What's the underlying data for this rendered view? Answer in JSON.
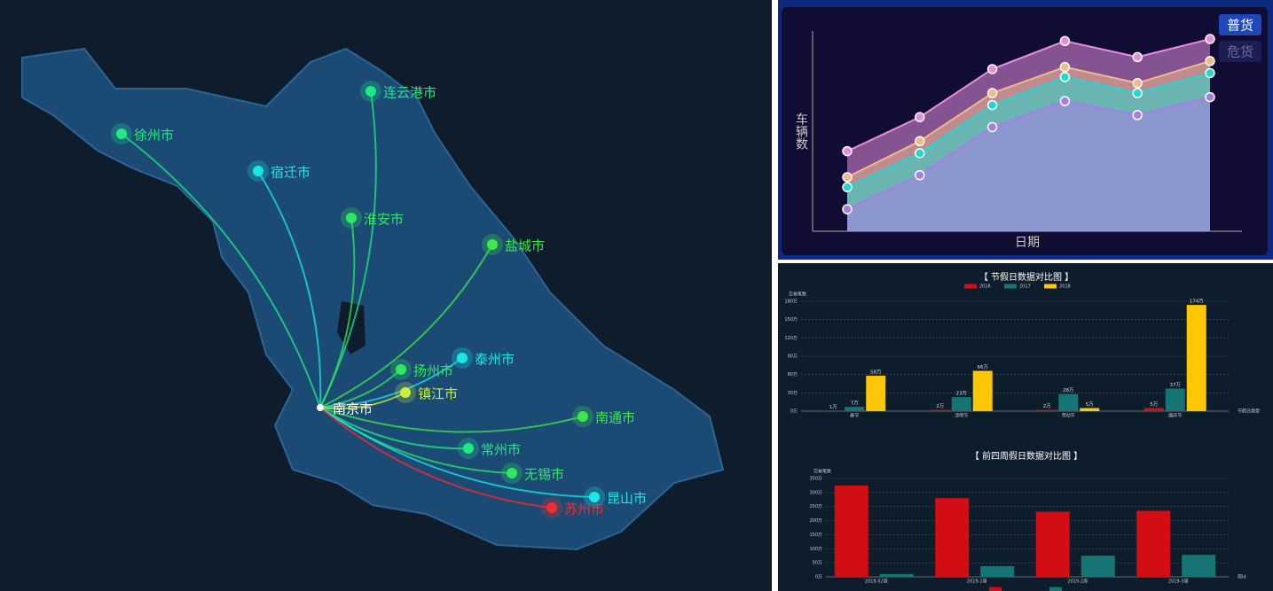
{
  "map": {
    "cities": [
      {
        "name": "徐州市",
        "color": "#1de986"
      },
      {
        "name": "宿迁市",
        "color": "#19e8e8"
      },
      {
        "name": "连云港市",
        "color": "#1de986"
      },
      {
        "name": "淮安市",
        "color": "#2ee860"
      },
      {
        "name": "盐城市",
        "color": "#3ee84a"
      },
      {
        "name": "扬州市",
        "color": "#2ee860"
      },
      {
        "name": "泰州市",
        "color": "#19e8e8"
      },
      {
        "name": "镇江市",
        "color": "#c8f03a"
      },
      {
        "name": "南京市",
        "color": "#ffffff"
      },
      {
        "name": "南通市",
        "color": "#3ee84a"
      },
      {
        "name": "常州市",
        "color": "#1de986"
      },
      {
        "name": "无锡市",
        "color": "#2ee860"
      },
      {
        "name": "昆山市",
        "color": "#19e8e8"
      },
      {
        "name": "苏州市",
        "color": "#ff2a2a"
      }
    ]
  },
  "chart_data": [
    {
      "type": "area",
      "xlabel": "日期",
      "ylabel": "车辆数",
      "legend": [
        "普货",
        "危货"
      ],
      "ylim": [
        0,
        100
      ],
      "series": [
        {
          "color": "#e58ee0",
          "values": [
            40,
            57,
            81,
            95,
            87,
            96
          ]
        },
        {
          "color": "#f0b98a",
          "values": [
            27,
            45,
            69,
            82,
            74,
            85
          ]
        },
        {
          "color": "#22d8d0",
          "values": [
            22,
            39,
            63,
            77,
            69,
            79
          ]
        },
        {
          "color": "#a77be8",
          "values": [
            11,
            28,
            52,
            65,
            58,
            67
          ]
        }
      ]
    },
    {
      "type": "bar",
      "title": "【 节假日数据对比图 】",
      "ylabel": "交易笔数",
      "xlabel": "节假日类型",
      "categories": [
        "春节",
        "清明节",
        "劳动节",
        "国庆节"
      ],
      "series": [
        {
          "name": "2016",
          "color": "#d20d13",
          "values": [
            1,
            2,
            2,
            5
          ],
          "value_labels": [
            "1万",
            "2万",
            "2万",
            "5万"
          ]
        },
        {
          "name": "2017",
          "color": "#167574",
          "values": [
            7,
            23,
            28,
            37
          ],
          "value_labels": [
            "7万",
            "23万",
            "28万",
            "37万"
          ]
        },
        {
          "name": "2018",
          "color": "#fdc607",
          "values": [
            58,
            66,
            5,
            174
          ],
          "value_labels": [
            "58万",
            "66万",
            "5万",
            "174万"
          ]
        }
      ],
      "ylim": [
        0,
        180
      ],
      "yticks": [
        {
          "value": 0,
          "label": "0万"
        },
        {
          "value": 30,
          "label": "30万"
        },
        {
          "value": 60,
          "label": "60万"
        },
        {
          "value": 90,
          "label": "90万"
        },
        {
          "value": 120,
          "label": "120万"
        },
        {
          "value": 150,
          "label": "150万"
        },
        {
          "value": 180,
          "label": "180万"
        }
      ],
      "grid": true
    },
    {
      "type": "bar",
      "title": "【 前四周假日数据对比图 】",
      "ylabel": "交易笔数",
      "xlabel": "周id",
      "categories": [
        "2018-52周",
        "2019-1周",
        "2019-2周",
        "2019-3周"
      ],
      "series": [
        {
          "color": "#d20d13",
          "values": [
            325,
            280,
            232,
            235
          ]
        },
        {
          "color": "#167574",
          "values": [
            10,
            38,
            75,
            78
          ]
        }
      ],
      "ylim": [
        0,
        350
      ],
      "yticks": [
        {
          "value": 0,
          "label": "0万"
        },
        {
          "value": 50,
          "label": "50万"
        },
        {
          "value": 100,
          "label": "100万"
        },
        {
          "value": 150,
          "label": "150万"
        },
        {
          "value": 200,
          "label": "200万"
        },
        {
          "value": 250,
          "label": "250万"
        },
        {
          "value": 300,
          "label": "300万"
        },
        {
          "value": 350,
          "label": "350万"
        }
      ],
      "grid": true
    }
  ]
}
